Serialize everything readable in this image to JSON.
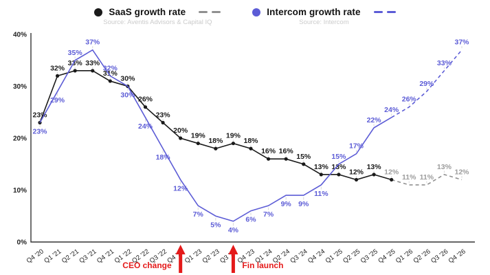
{
  "legend": [
    {
      "label": "SaaS growth rate",
      "source": "Source: Aventis Advisors & Capital IQ"
    },
    {
      "label": "Intercom growth rate",
      "source": "Source: Intercom"
    }
  ],
  "chart_data": {
    "type": "line",
    "title": "",
    "xlabel": "",
    "ylabel": "",
    "ylim": [
      0,
      40
    ],
    "grid": false,
    "legend_position": "top-center",
    "yticks": [
      {
        "v": 0,
        "label": "0%"
      },
      {
        "v": 10,
        "label": "10%"
      },
      {
        "v": 20,
        "label": "20%"
      },
      {
        "v": 30,
        "label": "30%"
      },
      {
        "v": 40,
        "label": "40%"
      }
    ],
    "categories": [
      "Q4 '20",
      "Q1 '21",
      "Q2 '21",
      "Q3 '21",
      "Q4 '21",
      "Q1 '22",
      "Q2 '22",
      "Q3 '22",
      "Q4 '22",
      "Q1 '23",
      "Q2 '23",
      "Q3 '23",
      "Q4 '23",
      "Q1 '24",
      "Q2 '24",
      "Q3 '24",
      "Q4 '24",
      "Q1 '25",
      "Q2 '25",
      "Q3 '25",
      "Q4 '25",
      "Q1 '26",
      "Q2 '26",
      "Q3 '26",
      "Q4 '26"
    ],
    "series": [
      {
        "id": "saas",
        "name": "SaaS growth rate",
        "color": "#1a1a1a",
        "forecast_color": "#909090",
        "forecast_label_color": "#9c9c9c",
        "markers": true,
        "solid_until": 20,
        "gray_labels_from": 20,
        "values": [
          23,
          32,
          33,
          33,
          31,
          30,
          26,
          23,
          20,
          19,
          18,
          19,
          18,
          16,
          16,
          15,
          13,
          13,
          12,
          13,
          12,
          11,
          11,
          13,
          12
        ],
        "unit": "%"
      },
      {
        "id": "intercom",
        "name": "Intercom growth rate",
        "color": "#5c5cd6",
        "forecast_color": "#5c5cd6",
        "markers": false,
        "solid_until": 20,
        "values": [
          23,
          29,
          35,
          37,
          32,
          30,
          24,
          18,
          12,
          7,
          5,
          4,
          6,
          7,
          9,
          9,
          11,
          15,
          17,
          22,
          24,
          26,
          29,
          33,
          37
        ],
        "unit": "%"
      }
    ],
    "annotations": [
      {
        "label": "CEO change",
        "category": "Q4 '22",
        "side": "left"
      },
      {
        "label": "Fin launch",
        "category": "Q3 '23",
        "side": "right"
      }
    ],
    "annotation_color": "#e41a1a"
  }
}
